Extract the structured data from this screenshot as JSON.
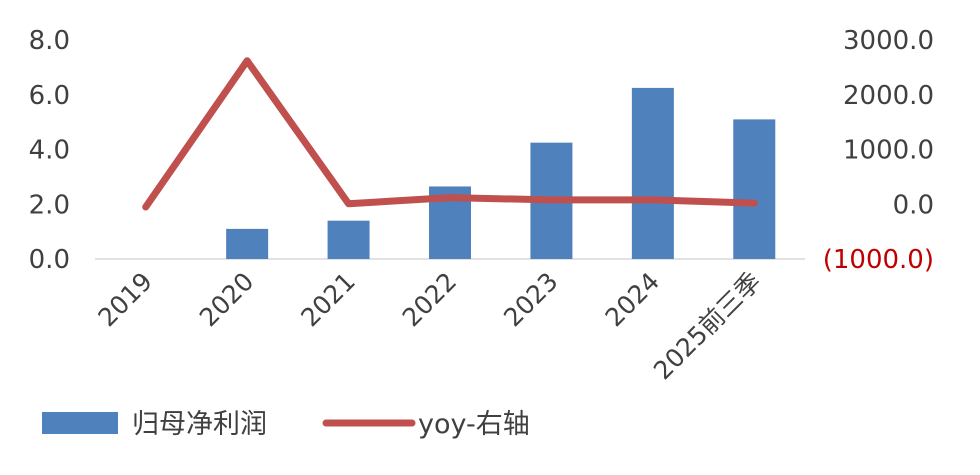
{
  "chart_data": {
    "type": "bar+line",
    "categories": [
      "2019",
      "2020",
      "2021",
      "2022",
      "2023",
      "2024",
      "2025前三季"
    ],
    "series": [
      {
        "name": "归母净利润",
        "kind": "bar",
        "axis": "left",
        "color": "#4F81BD",
        "values": [
          0.0,
          1.1,
          1.4,
          2.65,
          4.25,
          6.25,
          5.1
        ]
      },
      {
        "name": "yoy-右轴",
        "kind": "line",
        "axis": "right",
        "color": "#C0504D",
        "values": [
          -50,
          2620,
          10,
          120,
          80,
          80,
          20
        ]
      }
    ],
    "y_left": {
      "min": 0,
      "max": 8,
      "ticks": [
        {
          "value": 8,
          "label": "8.0"
        },
        {
          "value": 6,
          "label": "6.0"
        },
        {
          "value": 4,
          "label": "4.0"
        },
        {
          "value": 2,
          "label": "2.0"
        },
        {
          "value": 0,
          "label": "0.0"
        }
      ]
    },
    "y_right": {
      "min": -1000,
      "max": 3000,
      "ticks": [
        {
          "value": 3000,
          "label": "3000.0",
          "color": "#404040"
        },
        {
          "value": 2000,
          "label": "2000.0",
          "color": "#404040"
        },
        {
          "value": 1000,
          "label": "1000.0",
          "color": "#404040"
        },
        {
          "value": 0,
          "label": "0.0",
          "color": "#404040"
        },
        {
          "value": -1000,
          "label": "(1000.0)",
          "color": "#C00000"
        }
      ]
    },
    "grid": false,
    "legend_position": "bottom-left"
  }
}
